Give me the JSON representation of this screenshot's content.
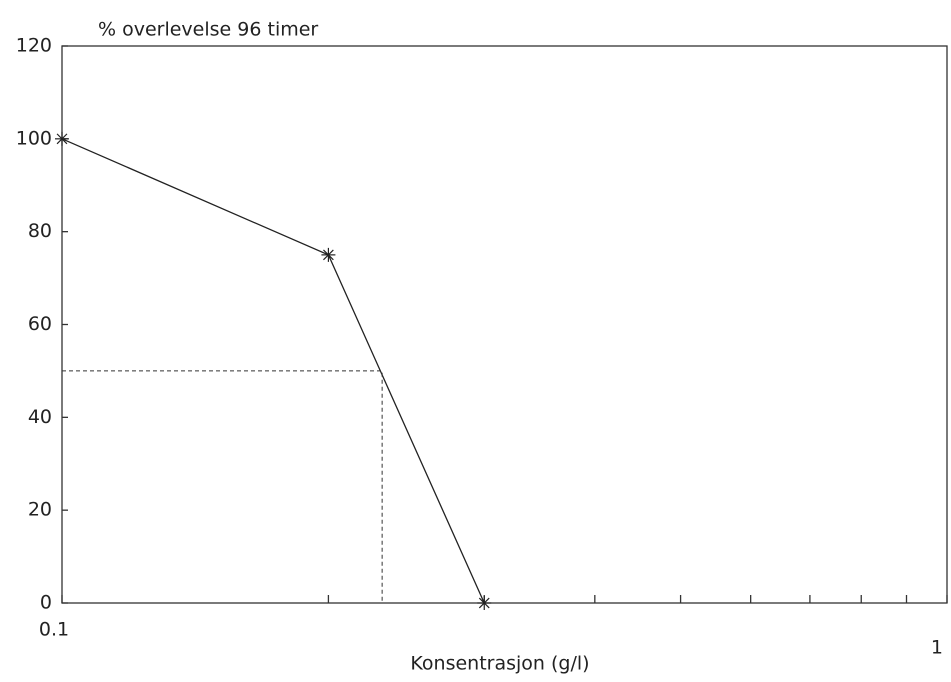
{
  "chart_data": {
    "type": "line",
    "y_label": "% overlevelse 96 timer",
    "x_label": "Konsentrasjon (g/l)",
    "x_log": true,
    "xlim": [
      0.1,
      1
    ],
    "xticks": [
      0.1,
      1
    ],
    "xminorticks": [
      0.2,
      0.3,
      0.4,
      0.5,
      0.6,
      0.7,
      0.8,
      0.9
    ],
    "ylim": [
      0,
      120
    ],
    "yticks": [
      0,
      20,
      40,
      60,
      80,
      100,
      120
    ],
    "series": [
      {
        "color": "#222",
        "marker": "star",
        "dash": false,
        "x": [
          0.1,
          0.2,
          0.3
        ],
        "values": [
          100,
          75,
          0
        ]
      },
      {
        "color": "#333",
        "marker": "none",
        "dash": true,
        "x": [
          0.1,
          0.23,
          0.23
        ],
        "values": [
          50,
          50,
          0
        ]
      }
    ]
  }
}
